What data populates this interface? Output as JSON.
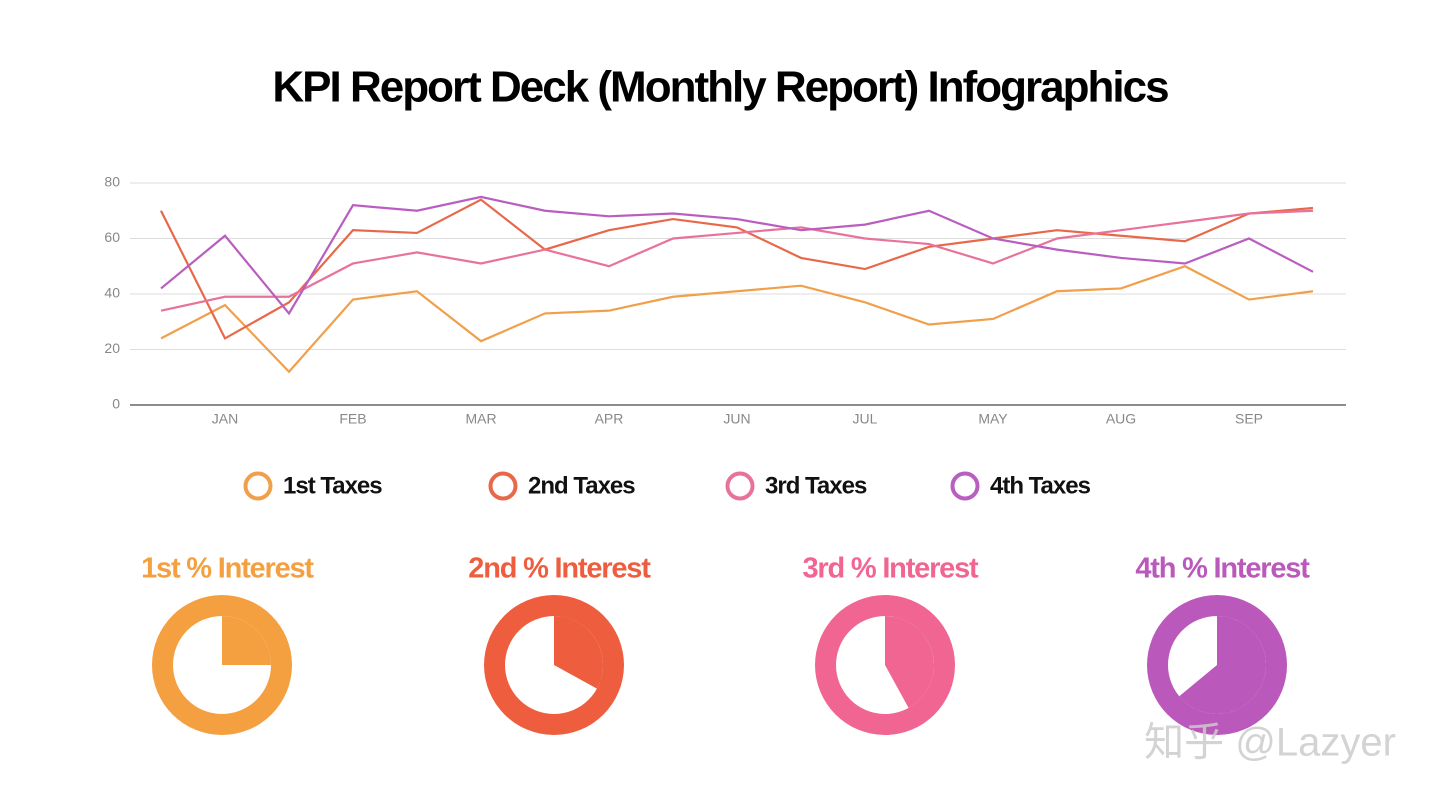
{
  "chart_data": [
    {
      "type": "line",
      "title": "KPI Report Deck (Monthly Report) Infographics",
      "categories": [
        null,
        "JAN",
        null,
        "FEB",
        null,
        "MAR",
        null,
        "APR",
        null,
        "JUN",
        null,
        "JUL",
        null,
        "MAY",
        null,
        "AUG",
        null,
        "SEP",
        null
      ],
      "series": [
        {
          "name": "1st Taxes",
          "color": "#f0a04b",
          "values": [
            24,
            36,
            12,
            38,
            41,
            23,
            33,
            34,
            39,
            41,
            43,
            37,
            29,
            31,
            41,
            42,
            50,
            38,
            41
          ]
        },
        {
          "name": "2nd Taxes",
          "color": "#e8684a",
          "values": [
            70,
            24,
            37,
            63,
            62,
            74,
            56,
            63,
            67,
            64,
            53,
            49,
            57,
            60,
            63,
            61,
            59,
            69,
            71
          ]
        },
        {
          "name": "3rd Taxes",
          "color": "#e8739a",
          "values": [
            34,
            39,
            39,
            51,
            55,
            51,
            56,
            50,
            60,
            62,
            64,
            60,
            58,
            51,
            60,
            63,
            66,
            69,
            70
          ]
        },
        {
          "name": "4th Taxes",
          "color": "#b95ec0",
          "values": [
            42,
            61,
            33,
            72,
            70,
            75,
            70,
            68,
            69,
            67,
            63,
            65,
            70,
            60,
            56,
            53,
            51,
            60,
            48
          ]
        }
      ],
      "ylim": [
        0,
        80
      ],
      "yticks": [
        0,
        20,
        40,
        60,
        80
      ],
      "grid": true
    },
    {
      "type": "pie",
      "title": "1st % Interest",
      "values": [
        25
      ],
      "color": "#f4a040"
    },
    {
      "type": "pie",
      "title": "2nd % Interest",
      "values": [
        33
      ],
      "color": "#ee5e3e"
    },
    {
      "type": "pie",
      "title": "3rd % Interest",
      "values": [
        42
      ],
      "color": "#f06592"
    },
    {
      "type": "pie",
      "title": "4th % Interest",
      "values": [
        64
      ],
      "color": "#bb58bb"
    }
  ],
  "watermark": "知乎 @Lazyer"
}
